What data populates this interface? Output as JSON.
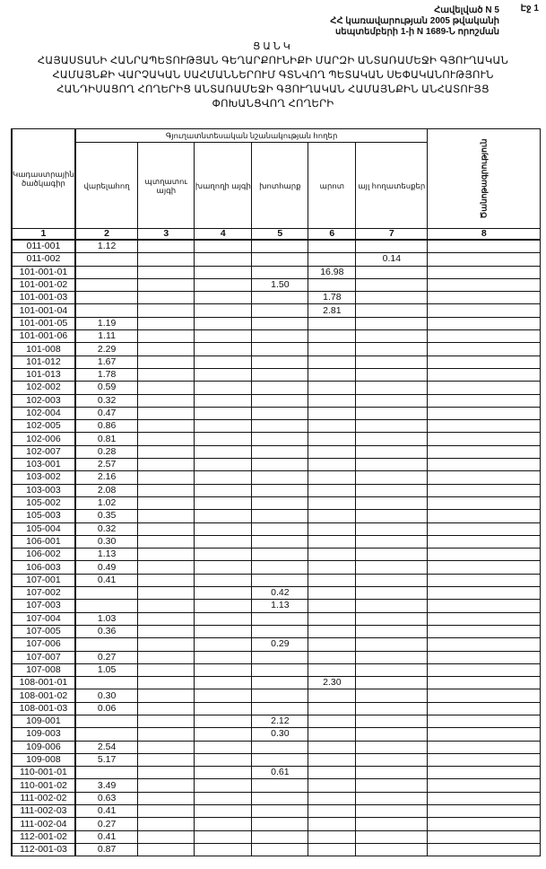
{
  "header": {
    "page": "Էջ 1",
    "appendix": "Հավելված N 5",
    "decree_line1": "ՀՀ կառավարության 2005 թվականի",
    "decree_line2": "սեպտեմբերի 1-ի N 1689-Ն որոշման"
  },
  "title": {
    "heading": "ՑԱՆԿ",
    "line1": "ՀԱՅԱՍՏԱՆԻ ՀԱՆՐԱՊԵՏՈՒԹՅԱՆ ԳԵՂԱՐՔՈՒՆԻՔԻ ՄԱՐԶԻ ԱՆՏԱՌԱՄԵՋԻ ԳՅՈՒՂԱԿԱՆ",
    "line2": "ՀԱՄԱՅՆՔԻ ՎԱՐՉԱԿԱՆ ՍԱՀՄԱՆՆԵՐՈՒՄ ԳՏՆՎՈՂ ՊԵՏԱԿԱՆ ՍԵՓԱԿԱՆՈՒԹՅՈՒՆ",
    "line3": "ՀԱՆԴԻՍԱՑՈՂ ՀՈՂԵՐԻՑ ԱՆՏԱՌԱՄԵՋԻ ԳՅՈՒՂԱԿԱՆ ՀԱՄԱՅՆՔԻՆ ԱՆՀԱՏՈՒՅՑ",
    "line4": "ՓՈԽԱՆՑՎՈՂ ՀՈՂԵՐԻ"
  },
  "table": {
    "group_header": "Գյուղատնտեսական նշանակության հողեր",
    "columns": [
      "Կադաստրային ծածկագիր",
      "վարելահող",
      "պտղատու այգի",
      "խաղողի այգի",
      "խոտհարք",
      "արոտ",
      "այլ հողատեսքեր",
      "Ծանոթագրություն"
    ],
    "column_numbers": [
      "1",
      "2",
      "3",
      "4",
      "5",
      "6",
      "7",
      "8"
    ],
    "rows": [
      [
        "011-001",
        "1.12",
        "",
        "",
        "",
        "",
        "",
        ""
      ],
      [
        "011-002",
        "",
        "",
        "",
        "",
        "",
        "0.14",
        ""
      ],
      [
        "101-001-01",
        "",
        "",
        "",
        "",
        "16.98",
        "",
        ""
      ],
      [
        "101-001-02",
        "",
        "",
        "",
        "1.50",
        "",
        "",
        ""
      ],
      [
        "101-001-03",
        "",
        "",
        "",
        "",
        "1.78",
        "",
        ""
      ],
      [
        "101-001-04",
        "",
        "",
        "",
        "",
        "2.81",
        "",
        ""
      ],
      [
        "101-001-05",
        "1.19",
        "",
        "",
        "",
        "",
        "",
        ""
      ],
      [
        "101-001-06",
        "1.11",
        "",
        "",
        "",
        "",
        "",
        ""
      ],
      [
        "101-008",
        "2.29",
        "",
        "",
        "",
        "",
        "",
        ""
      ],
      [
        "101-012",
        "1.67",
        "",
        "",
        "",
        "",
        "",
        ""
      ],
      [
        "101-013",
        "1.78",
        "",
        "",
        "",
        "",
        "",
        ""
      ],
      [
        "102-002",
        "0.59",
        "",
        "",
        "",
        "",
        "",
        ""
      ],
      [
        "102-003",
        "0.32",
        "",
        "",
        "",
        "",
        "",
        ""
      ],
      [
        "102-004",
        "0.47",
        "",
        "",
        "",
        "",
        "",
        ""
      ],
      [
        "102-005",
        "0.86",
        "",
        "",
        "",
        "",
        "",
        ""
      ],
      [
        "102-006",
        "0.81",
        "",
        "",
        "",
        "",
        "",
        ""
      ],
      [
        "102-007",
        "0.28",
        "",
        "",
        "",
        "",
        "",
        ""
      ],
      [
        "103-001",
        "2.57",
        "",
        "",
        "",
        "",
        "",
        ""
      ],
      [
        "103-002",
        "2.16",
        "",
        "",
        "",
        "",
        "",
        ""
      ],
      [
        "103-003",
        "2.08",
        "",
        "",
        "",
        "",
        "",
        ""
      ],
      [
        "105-002",
        "1.02",
        "",
        "",
        "",
        "",
        "",
        ""
      ],
      [
        "105-003",
        "0.35",
        "",
        "",
        "",
        "",
        "",
        ""
      ],
      [
        "105-004",
        "0.32",
        "",
        "",
        "",
        "",
        "",
        ""
      ],
      [
        "106-001",
        "0.30",
        "",
        "",
        "",
        "",
        "",
        ""
      ],
      [
        "106-002",
        "1.13",
        "",
        "",
        "",
        "",
        "",
        ""
      ],
      [
        "106-003",
        "0.49",
        "",
        "",
        "",
        "",
        "",
        ""
      ],
      [
        "107-001",
        "0.41",
        "",
        "",
        "",
        "",
        "",
        ""
      ],
      [
        "107-002",
        "",
        "",
        "",
        "0.42",
        "",
        "",
        ""
      ],
      [
        "107-003",
        "",
        "",
        "",
        "1.13",
        "",
        "",
        ""
      ],
      [
        "107-004",
        "1.03",
        "",
        "",
        "",
        "",
        "",
        ""
      ],
      [
        "107-005",
        "0.36",
        "",
        "",
        "",
        "",
        "",
        ""
      ],
      [
        "107-006",
        "",
        "",
        "",
        "0.29",
        "",
        "",
        ""
      ],
      [
        "107-007",
        "0.27",
        "",
        "",
        "",
        "",
        "",
        ""
      ],
      [
        "107-008",
        "1.05",
        "",
        "",
        "",
        "",
        "",
        ""
      ],
      [
        "108-001-01",
        "",
        "",
        "",
        "",
        "2.30",
        "",
        ""
      ],
      [
        "108-001-02",
        "0.30",
        "",
        "",
        "",
        "",
        "",
        ""
      ],
      [
        "108-001-03",
        "0.06",
        "",
        "",
        "",
        "",
        "",
        ""
      ],
      [
        "109-001",
        "",
        "",
        "",
        "2.12",
        "",
        "",
        ""
      ],
      [
        "109-003",
        "",
        "",
        "",
        "0.30",
        "",
        "",
        ""
      ],
      [
        "109-006",
        "2.54",
        "",
        "",
        "",
        "",
        "",
        ""
      ],
      [
        "109-008",
        "5.17",
        "",
        "",
        "",
        "",
        "",
        ""
      ],
      [
        "110-001-01",
        "",
        "",
        "",
        "0.61",
        "",
        "",
        ""
      ],
      [
        "110-001-02",
        "3.49",
        "",
        "",
        "",
        "",
        "",
        ""
      ],
      [
        "111-002-02",
        "0.63",
        "",
        "",
        "",
        "",
        "",
        ""
      ],
      [
        "111-002-03",
        "0.41",
        "",
        "",
        "",
        "",
        "",
        ""
      ],
      [
        "111-002-04",
        "0.27",
        "",
        "",
        "",
        "",
        "",
        ""
      ],
      [
        "112-001-02",
        "0.41",
        "",
        "",
        "",
        "",
        "",
        ""
      ],
      [
        "112-001-03",
        "0.87",
        "",
        "",
        "",
        "",
        "",
        ""
      ]
    ]
  }
}
